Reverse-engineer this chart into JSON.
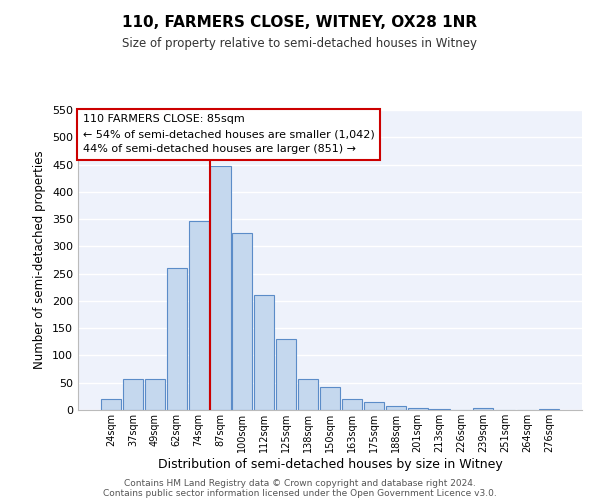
{
  "title": "110, FARMERS CLOSE, WITNEY, OX28 1NR",
  "subtitle": "Size of property relative to semi-detached houses in Witney",
  "xlabel": "Distribution of semi-detached houses by size in Witney",
  "ylabel": "Number of semi-detached properties",
  "bar_labels": [
    "24sqm",
    "37sqm",
    "49sqm",
    "62sqm",
    "74sqm",
    "87sqm",
    "100sqm",
    "112sqm",
    "125sqm",
    "138sqm",
    "150sqm",
    "163sqm",
    "175sqm",
    "188sqm",
    "201sqm",
    "213sqm",
    "226sqm",
    "239sqm",
    "251sqm",
    "264sqm",
    "276sqm"
  ],
  "bar_values": [
    20,
    57,
    57,
    260,
    347,
    448,
    325,
    210,
    130,
    57,
    42,
    20,
    15,
    8,
    4,
    2,
    0,
    4,
    0,
    0,
    2
  ],
  "bar_color": "#c5d8ee",
  "bar_edge_color": "#5b8cc8",
  "background_color": "#eef2fb",
  "plot_bg_color": "#eef2fb",
  "grid_color": "#ffffff",
  "marker_index": 5,
  "marker_color": "#cc0000",
  "annotation_title": "110 FARMERS CLOSE: 85sqm",
  "annotation_line1": "← 54% of semi-detached houses are smaller (1,042)",
  "annotation_line2": "44% of semi-detached houses are larger (851) →",
  "annotation_box_color": "#cc0000",
  "ylim": [
    0,
    550
  ],
  "yticks": [
    0,
    50,
    100,
    150,
    200,
    250,
    300,
    350,
    400,
    450,
    500,
    550
  ],
  "footer1": "Contains HM Land Registry data © Crown copyright and database right 2024.",
  "footer2": "Contains public sector information licensed under the Open Government Licence v3.0."
}
